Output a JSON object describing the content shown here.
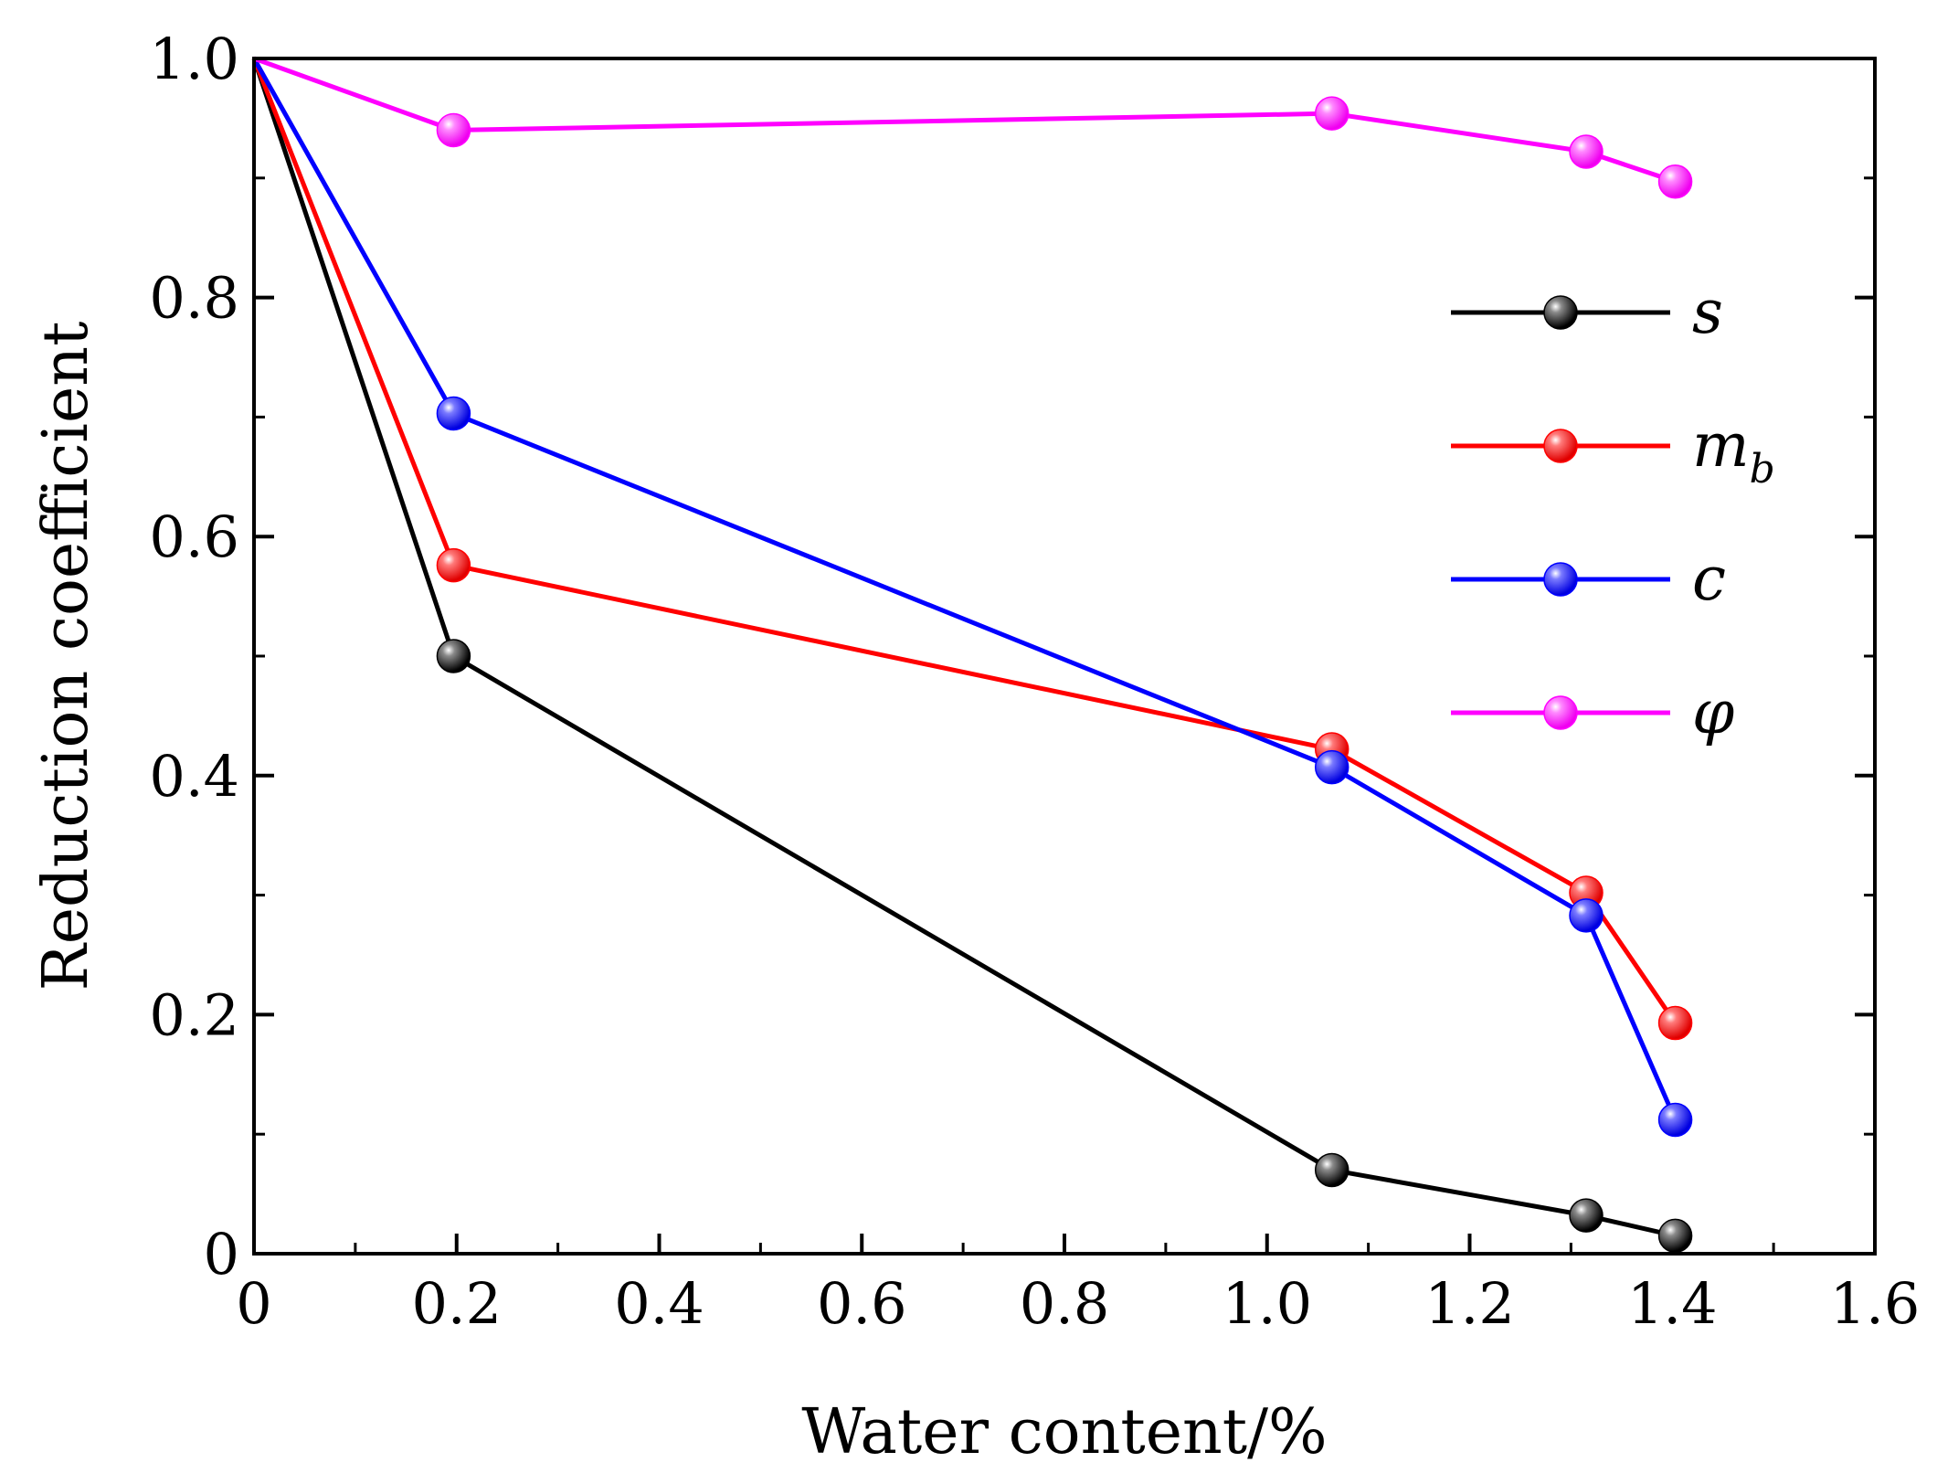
{
  "chart_data": {
    "type": "line",
    "title": "",
    "xlabel": "Water content/%",
    "ylabel": "Reduction coefficient",
    "xlim": [
      0,
      1.6
    ],
    "ylim": [
      0,
      1.0
    ],
    "xticks": [
      0,
      0.2,
      0.4,
      0.6,
      0.8,
      1.0,
      1.2,
      1.4,
      1.6
    ],
    "xtick_labels": [
      "0",
      "0.2",
      "0.4",
      "0.6",
      "0.8",
      "1.0",
      "1.2",
      "1.4",
      "1.6"
    ],
    "yticks": [
      0,
      0.2,
      0.4,
      0.6,
      0.8,
      1.0
    ],
    "ytick_labels": [
      "0",
      "0.2",
      "0.4",
      "0.6",
      "0.8",
      "1.0"
    ],
    "grid": false,
    "legend_position": "right",
    "x": [
      0,
      0.197,
      1.064,
      1.315,
      1.403
    ],
    "series": [
      {
        "name": "s",
        "subscript": "",
        "color": "#000000",
        "values": [
          1.0,
          0.5,
          0.07,
          0.032,
          0.015
        ]
      },
      {
        "name": "m",
        "subscript": "b",
        "color": "#ff0000",
        "values": [
          1.0,
          0.576,
          0.422,
          0.302,
          0.193
        ]
      },
      {
        "name": "c",
        "subscript": "",
        "color": "#0000ff",
        "values": [
          1.0,
          0.703,
          0.407,
          0.283,
          0.112
        ]
      },
      {
        "name": "φ",
        "subscript": "",
        "color": "#ff00ff",
        "values": [
          1.0,
          0.94,
          0.954,
          0.922,
          0.897
        ]
      }
    ]
  }
}
